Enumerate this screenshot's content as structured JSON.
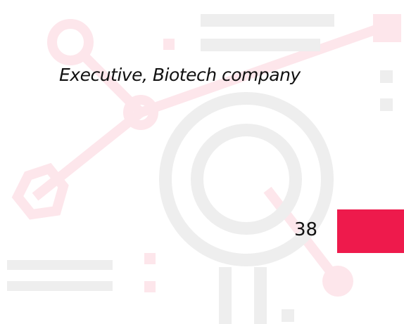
{
  "caption": "Executive, Biotech company",
  "page_number": "38"
}
